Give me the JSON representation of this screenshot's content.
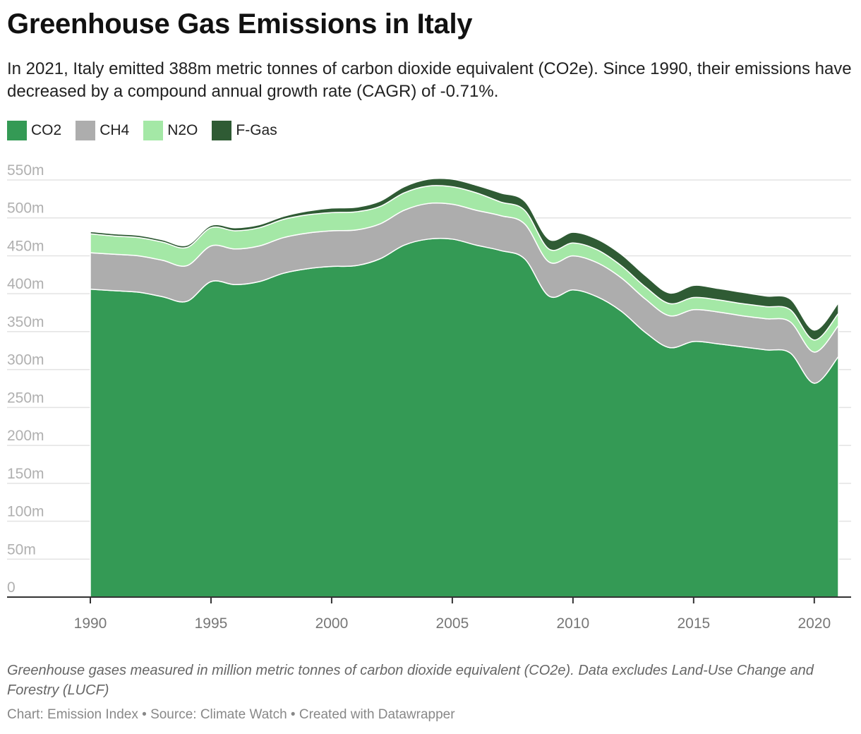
{
  "title": "Greenhouse Gas Emissions in Italy",
  "subtitle": "In 2021, Italy emitted 388m metric tonnes of carbon dioxide equivalent (CO2e). Since 1990, their emissions have decreased by a compound annual growth rate (CAGR) of -0.71%.",
  "note": "Greenhouse gases measured in million metric tonnes of carbon dioxide equivalent (CO2e). Data excludes Land-Use Change and Forestry (LUCF)",
  "credits": "Chart: Emission Index • Source: Climate Watch • Created with Datawrapper",
  "chart_data": {
    "type": "area",
    "stacked": true,
    "title": "Greenhouse Gas Emissions in Italy",
    "xlabel": "",
    "ylabel": "",
    "x": [
      1990,
      1991,
      1992,
      1993,
      1994,
      1995,
      1996,
      1997,
      1998,
      1999,
      2000,
      2001,
      2002,
      2003,
      2004,
      2005,
      2006,
      2007,
      2008,
      2009,
      2010,
      2011,
      2012,
      2013,
      2014,
      2015,
      2016,
      2017,
      2018,
      2019,
      2020,
      2021
    ],
    "xticks": [
      1990,
      1995,
      2000,
      2005,
      2010,
      2015,
      2020
    ],
    "xtick_labels": [
      "1990",
      "1995",
      "2000",
      "2005",
      "2010",
      "2015",
      "2020"
    ],
    "ylim": [
      0,
      550
    ],
    "yticks": [
      0,
      50,
      100,
      150,
      200,
      250,
      300,
      350,
      400,
      450,
      500,
      550
    ],
    "ytick_labels": [
      "0",
      "50m",
      "100m",
      "150m",
      "200m",
      "250m",
      "300m",
      "350m",
      "400m",
      "450m",
      "500m",
      "550m"
    ],
    "grid": true,
    "legend_position": "top-left",
    "series": [
      {
        "name": "CO2",
        "color": "#349a55",
        "values": [
          406,
          404,
          402,
          396,
          390,
          416,
          412,
          416,
          427,
          433,
          436,
          437,
          446,
          464,
          472,
          472,
          464,
          457,
          446,
          397,
          405,
          396,
          377,
          349,
          329,
          337,
          334,
          330,
          326,
          322,
          282,
          317
        ]
      },
      {
        "name": "CH4",
        "color": "#adadad",
        "values": [
          48,
          48,
          48,
          48,
          47,
          47,
          47,
          47,
          47,
          47,
          47,
          47,
          46,
          46,
          47,
          46,
          46,
          46,
          46,
          45,
          45,
          45,
          44,
          44,
          42,
          42,
          42,
          41,
          41,
          41,
          41,
          41
        ]
      },
      {
        "name": "N2O",
        "color": "#a4e8a6",
        "values": [
          25,
          24,
          24,
          24,
          24,
          24,
          24,
          24,
          24,
          24,
          24,
          24,
          23,
          23,
          23,
          23,
          23,
          18,
          18,
          17,
          17,
          17,
          16,
          16,
          16,
          16,
          16,
          16,
          16,
          16,
          16,
          16
        ]
      },
      {
        "name": "F-Gas",
        "color": "#2f5b34",
        "values": [
          3,
          3,
          3,
          3,
          3,
          3,
          4,
          4,
          4,
          5,
          6,
          6,
          7,
          8,
          9,
          10,
          10,
          12,
          12,
          13,
          14,
          14,
          15,
          15,
          14,
          16,
          15,
          15,
          14,
          14,
          13,
          14
        ]
      }
    ]
  }
}
